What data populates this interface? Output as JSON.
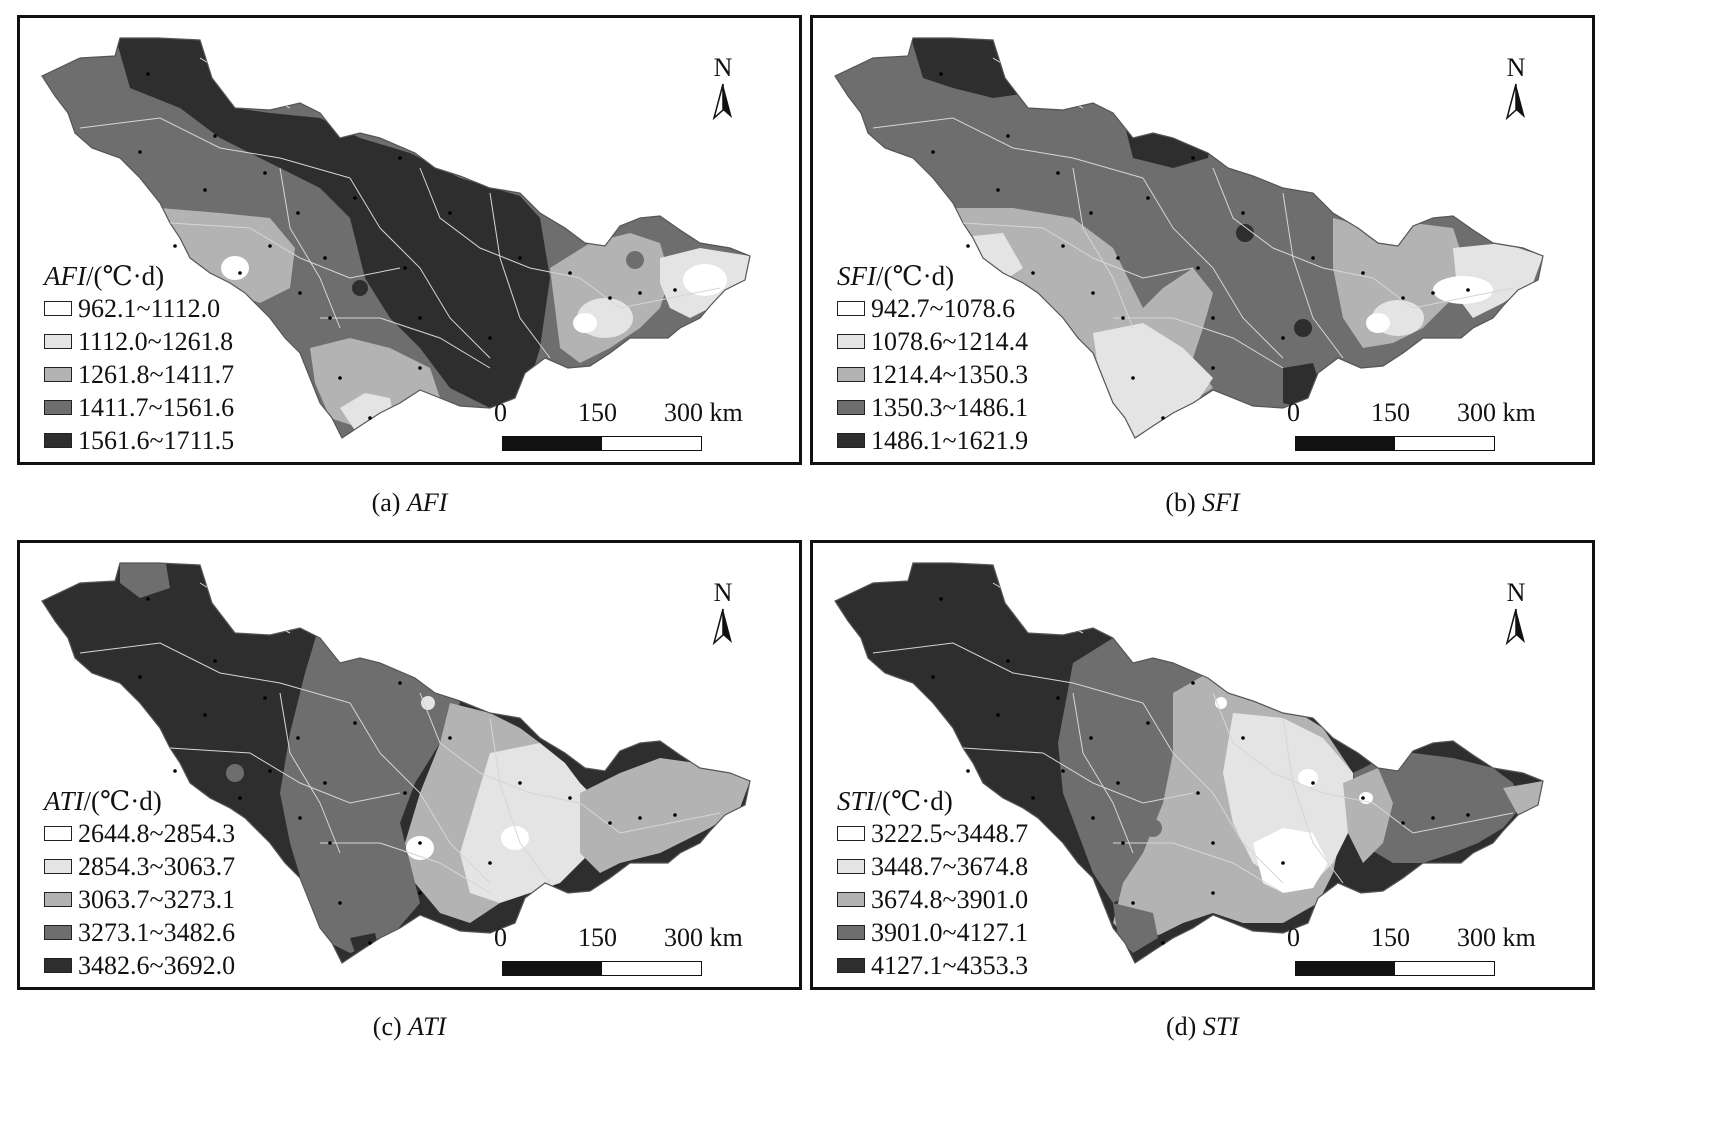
{
  "colors": {
    "class1": "#ffffff",
    "class2": "#e4e4e4",
    "class3": "#b3b3b3",
    "class4": "#6e6e6e",
    "class5": "#2e2e2e",
    "boundary": "#d6d6d6"
  },
  "north_label": "N",
  "scale": {
    "zero": "0",
    "mid": "150",
    "max": "300 km"
  },
  "panels": [
    {
      "index_label": "AFI",
      "unit": "/(℃·d)",
      "caption_prefix": "(a) ",
      "caption_var": "AFI",
      "legend": [
        "962.1~1112.0",
        "1112.0~1261.8",
        "1261.8~1411.7",
        "1411.7~1561.6",
        "1561.6~1711.5"
      ]
    },
    {
      "index_label": "SFI",
      "unit": "/(℃·d)",
      "caption_prefix": "(b) ",
      "caption_var": "SFI",
      "legend": [
        "942.7~1078.6",
        "1078.6~1214.4",
        "1214.4~1350.3",
        "1350.3~1486.1",
        "1486.1~1621.9"
      ]
    },
    {
      "index_label": "ATI",
      "unit": "/(℃·d)",
      "caption_prefix": "(c) ",
      "caption_var": "ATI",
      "legend": [
        "2644.8~2854.3",
        "2854.3~3063.7",
        "3063.7~3273.1",
        "3273.1~3482.6",
        "3482.6~3692.0"
      ]
    },
    {
      "index_label": "STI",
      "unit": "/(℃·d)",
      "caption_prefix": "(d) ",
      "caption_var": "STI",
      "legend": [
        "3222.5~3448.7",
        "3448.7~3674.8",
        "3674.8~3901.0",
        "3901.0~4127.1",
        "4127.1~4353.3"
      ]
    }
  ]
}
